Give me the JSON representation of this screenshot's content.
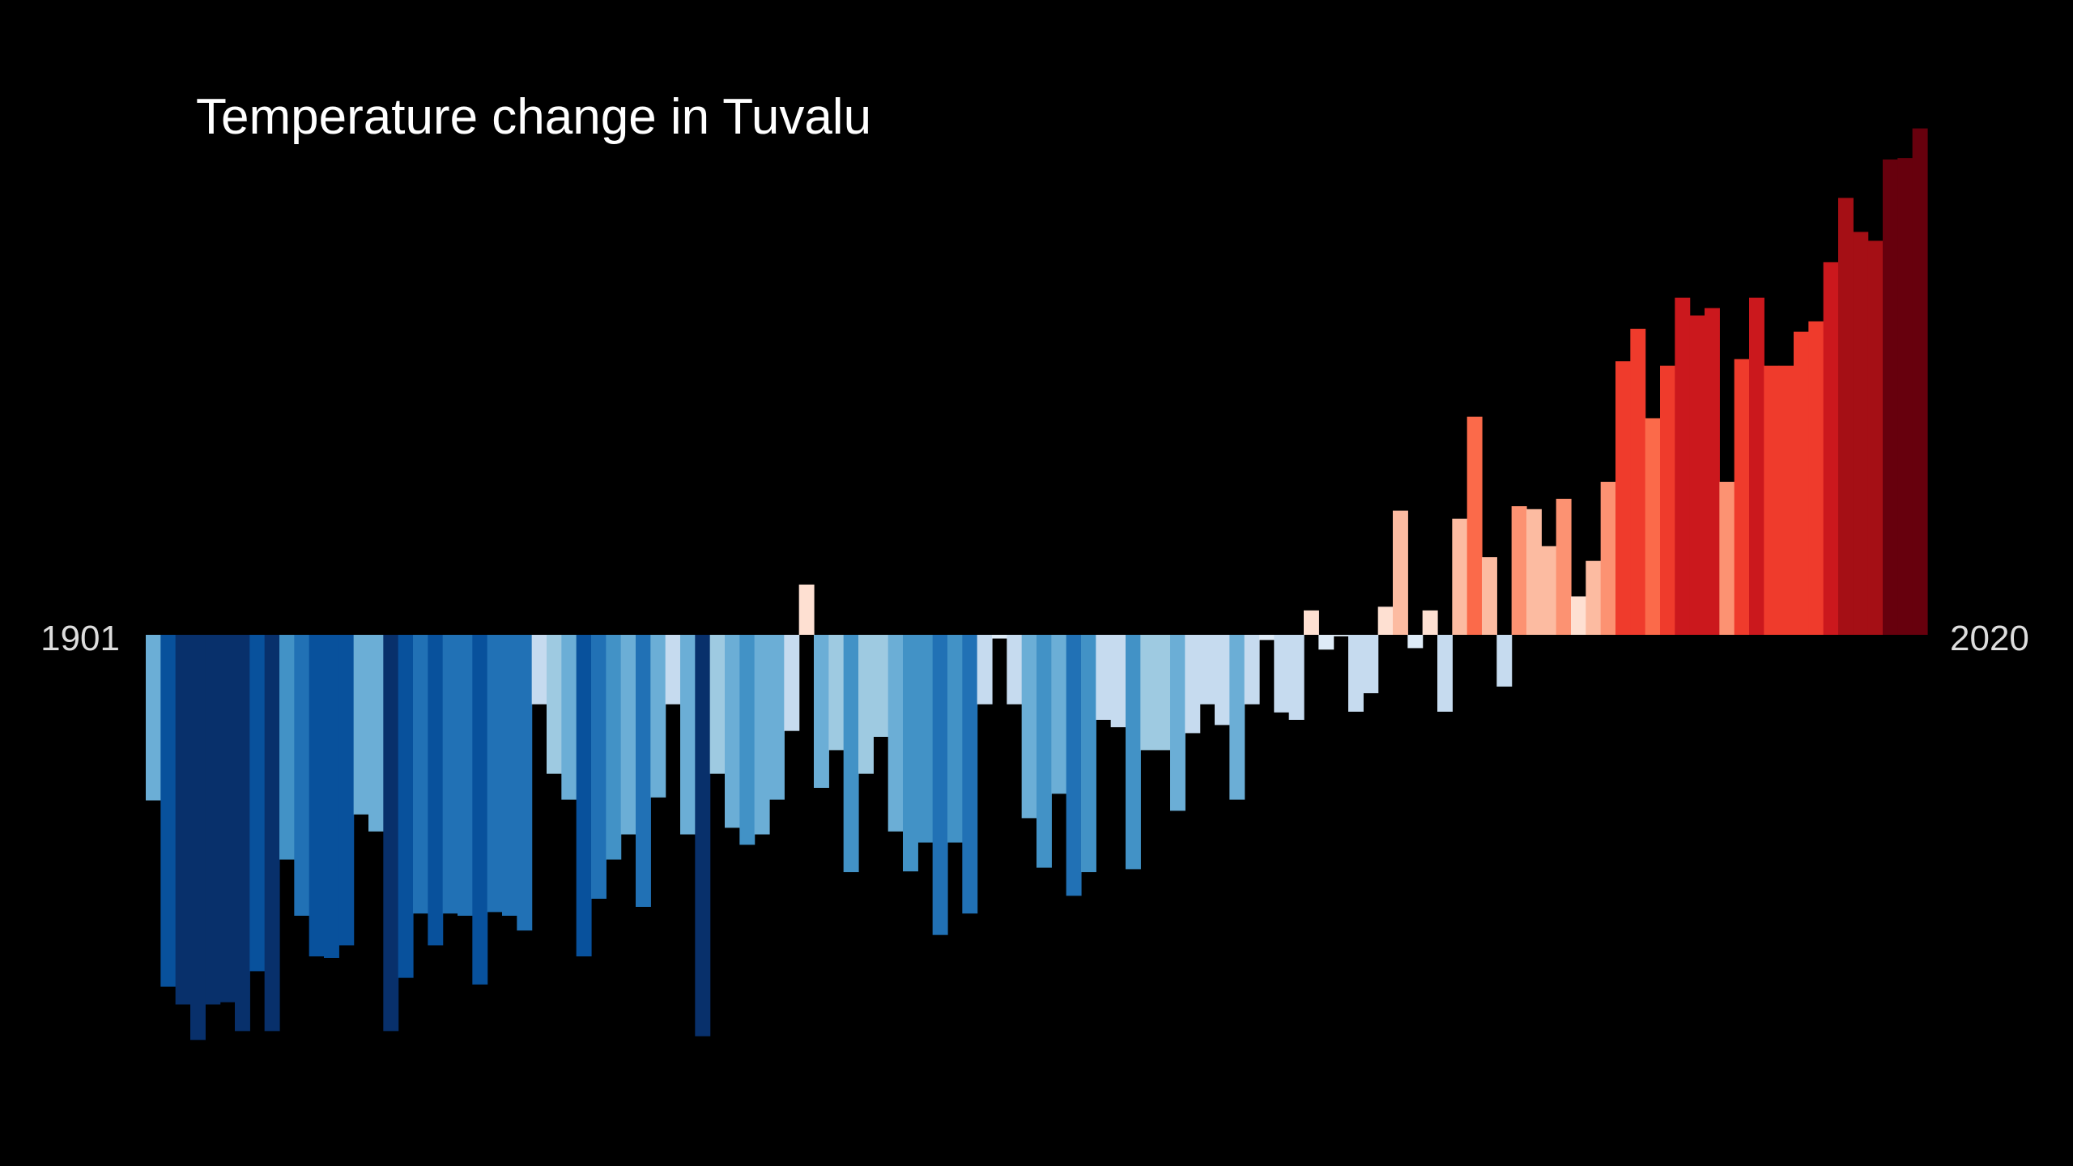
{
  "chart_data": {
    "type": "bar",
    "title": "Temperature change in Tuvalu",
    "start_label": "1901",
    "end_label": "2020",
    "xlabel": "",
    "ylabel": "",
    "categories_range": [
      1901,
      2020
    ],
    "ylim": [
      -0.55,
      0.69
    ],
    "grid": false,
    "legend": "none",
    "colors": {
      "background": "#000000",
      "text": "#ffffff",
      "label_text": "#dddddd",
      "scale": [
        "#08306b",
        "#08519c",
        "#2171b5",
        "#4292c6",
        "#6baed6",
        "#9ecae1",
        "#c6dbef",
        "#deebf7",
        "#fee0d2",
        "#fcbba1",
        "#fc9272",
        "#fb6a4a",
        "#ef3b2c",
        "#cb181d",
        "#a50f15",
        "#67000d"
      ]
    },
    "values": [
      -0.224,
      -0.476,
      -0.5,
      -0.548,
      -0.5,
      -0.497,
      -0.536,
      -0.455,
      -0.536,
      -0.304,
      -0.38,
      -0.435,
      -0.437,
      -0.42,
      -0.243,
      -0.266,
      -0.536,
      -0.464,
      -0.377,
      -0.42,
      -0.377,
      -0.38,
      -0.473,
      -0.375,
      -0.38,
      -0.4,
      -0.094,
      -0.188,
      -0.223,
      -0.435,
      -0.357,
      -0.304,
      -0.27,
      -0.368,
      -0.22,
      -0.094,
      -0.27,
      -0.543,
      -0.188,
      -0.261,
      -0.284,
      -0.27,
      -0.223,
      -0.13,
      0.068,
      -0.207,
      -0.156,
      -0.321,
      -0.188,
      -0.138,
      -0.266,
      -0.32,
      -0.281,
      -0.406,
      -0.281,
      -0.377,
      -0.094,
      -0.005,
      -0.094,
      -0.248,
      -0.315,
      -0.215,
      -0.353,
      -0.321,
      -0.115,
      -0.125,
      -0.317,
      -0.156,
      -0.156,
      -0.238,
      -0.133,
      -0.094,
      -0.122,
      -0.223,
      -0.094,
      -0.007,
      -0.105,
      -0.115,
      0.033,
      -0.02,
      -0.002,
      -0.104,
      -0.079,
      0.038,
      0.168,
      -0.018,
      0.033,
      -0.104,
      0.157,
      0.295,
      0.105,
      -0.07,
      0.174,
      0.17,
      0.12,
      0.184,
      0.052,
      0.1,
      0.207,
      0.37,
      0.414,
      0.293,
      0.364,
      0.456,
      0.432,
      0.442,
      0.207,
      0.373,
      0.456,
      0.364,
      0.364,
      0.41,
      0.424,
      0.504,
      0.591,
      0.545,
      0.533,
      0.643,
      0.645,
      0.685
    ]
  }
}
